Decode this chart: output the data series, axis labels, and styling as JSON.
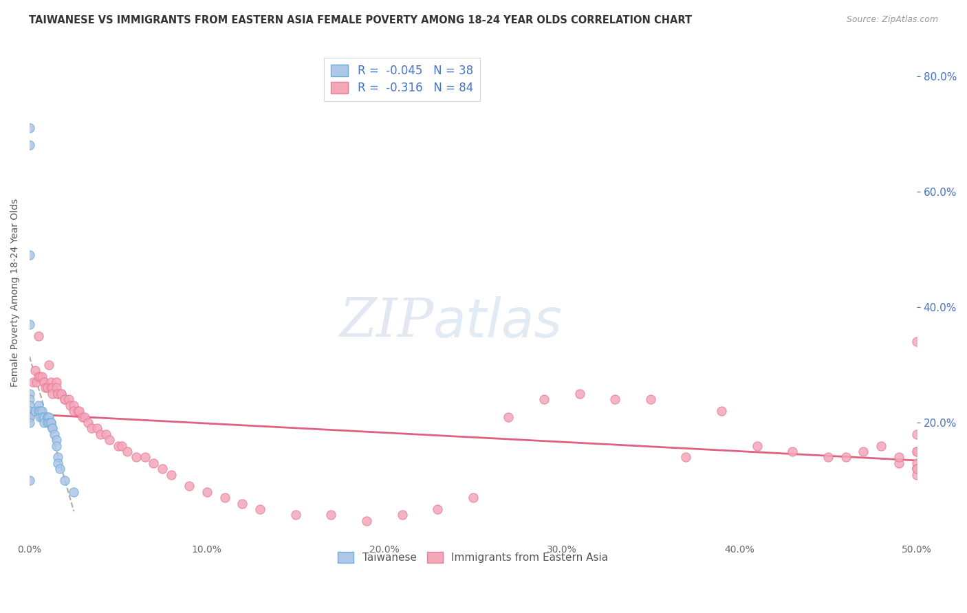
{
  "title": "TAIWANESE VS IMMIGRANTS FROM EASTERN ASIA FEMALE POVERTY AMONG 18-24 YEAR OLDS CORRELATION CHART",
  "source": "Source: ZipAtlas.com",
  "ylabel_label": "Female Poverty Among 18-24 Year Olds",
  "xlim": [
    0.0,
    0.5
  ],
  "ylim": [
    0.0,
    0.85
  ],
  "background_color": "#ffffff",
  "grid_color": "#cccccc",
  "taiwanese_color": "#aec6e8",
  "immigrant_color": "#f4a7b9",
  "taiwanese_R": -0.045,
  "taiwanese_N": 38,
  "immigrant_R": -0.316,
  "immigrant_N": 84,
  "legend_R_color": "#4472c4",
  "scatter_edge_taiwanese": "#6baed6",
  "scatter_edge_immigrant": "#e87c9a",
  "trendline_taiwanese_color": "#aaaaaa",
  "trendline_immigrant_color": "#e06080",
  "watermark_zip": "ZIP",
  "watermark_atlas": "atlas",
  "taiwanese_x": [
    0.0,
    0.0,
    0.0,
    0.0,
    0.0,
    0.0,
    0.0,
    0.0,
    0.0,
    0.0,
    0.0,
    0.003,
    0.003,
    0.005,
    0.005,
    0.006,
    0.006,
    0.007,
    0.007,
    0.008,
    0.008,
    0.01,
    0.01,
    0.01,
    0.011,
    0.011,
    0.012,
    0.012,
    0.013,
    0.013,
    0.014,
    0.015,
    0.015,
    0.016,
    0.016,
    0.017,
    0.02,
    0.025
  ],
  "taiwanese_y": [
    0.71,
    0.68,
    0.49,
    0.37,
    0.25,
    0.24,
    0.23,
    0.22,
    0.21,
    0.2,
    0.1,
    0.22,
    0.22,
    0.23,
    0.22,
    0.22,
    0.21,
    0.22,
    0.21,
    0.21,
    0.2,
    0.21,
    0.21,
    0.2,
    0.21,
    0.2,
    0.2,
    0.2,
    0.19,
    0.19,
    0.18,
    0.17,
    0.16,
    0.14,
    0.13,
    0.12,
    0.1,
    0.08
  ],
  "immigrant_x": [
    0.0,
    0.0,
    0.002,
    0.003,
    0.004,
    0.005,
    0.005,
    0.006,
    0.007,
    0.008,
    0.008,
    0.009,
    0.01,
    0.01,
    0.011,
    0.012,
    0.012,
    0.013,
    0.013,
    0.015,
    0.015,
    0.016,
    0.016,
    0.018,
    0.018,
    0.02,
    0.02,
    0.022,
    0.023,
    0.025,
    0.025,
    0.027,
    0.028,
    0.03,
    0.031,
    0.033,
    0.035,
    0.038,
    0.04,
    0.043,
    0.045,
    0.05,
    0.052,
    0.055,
    0.06,
    0.065,
    0.07,
    0.075,
    0.08,
    0.09,
    0.1,
    0.11,
    0.12,
    0.13,
    0.15,
    0.17,
    0.19,
    0.21,
    0.23,
    0.25,
    0.27,
    0.29,
    0.31,
    0.33,
    0.35,
    0.37,
    0.39,
    0.41,
    0.43,
    0.45,
    0.46,
    0.47,
    0.48,
    0.49,
    0.49,
    0.5,
    0.5,
    0.5,
    0.5,
    0.5,
    0.5,
    0.5,
    0.5,
    0.5
  ],
  "immigrant_y": [
    0.22,
    0.21,
    0.27,
    0.29,
    0.27,
    0.28,
    0.35,
    0.28,
    0.28,
    0.27,
    0.27,
    0.26,
    0.26,
    0.26,
    0.3,
    0.27,
    0.26,
    0.26,
    0.25,
    0.27,
    0.26,
    0.25,
    0.25,
    0.25,
    0.25,
    0.24,
    0.24,
    0.24,
    0.23,
    0.23,
    0.22,
    0.22,
    0.22,
    0.21,
    0.21,
    0.2,
    0.19,
    0.19,
    0.18,
    0.18,
    0.17,
    0.16,
    0.16,
    0.15,
    0.14,
    0.14,
    0.13,
    0.12,
    0.11,
    0.09,
    0.08,
    0.07,
    0.06,
    0.05,
    0.04,
    0.04,
    0.03,
    0.04,
    0.05,
    0.07,
    0.21,
    0.24,
    0.25,
    0.24,
    0.24,
    0.14,
    0.22,
    0.16,
    0.15,
    0.14,
    0.14,
    0.15,
    0.16,
    0.13,
    0.14,
    0.12,
    0.13,
    0.12,
    0.18,
    0.11,
    0.12,
    0.15,
    0.15,
    0.34
  ]
}
